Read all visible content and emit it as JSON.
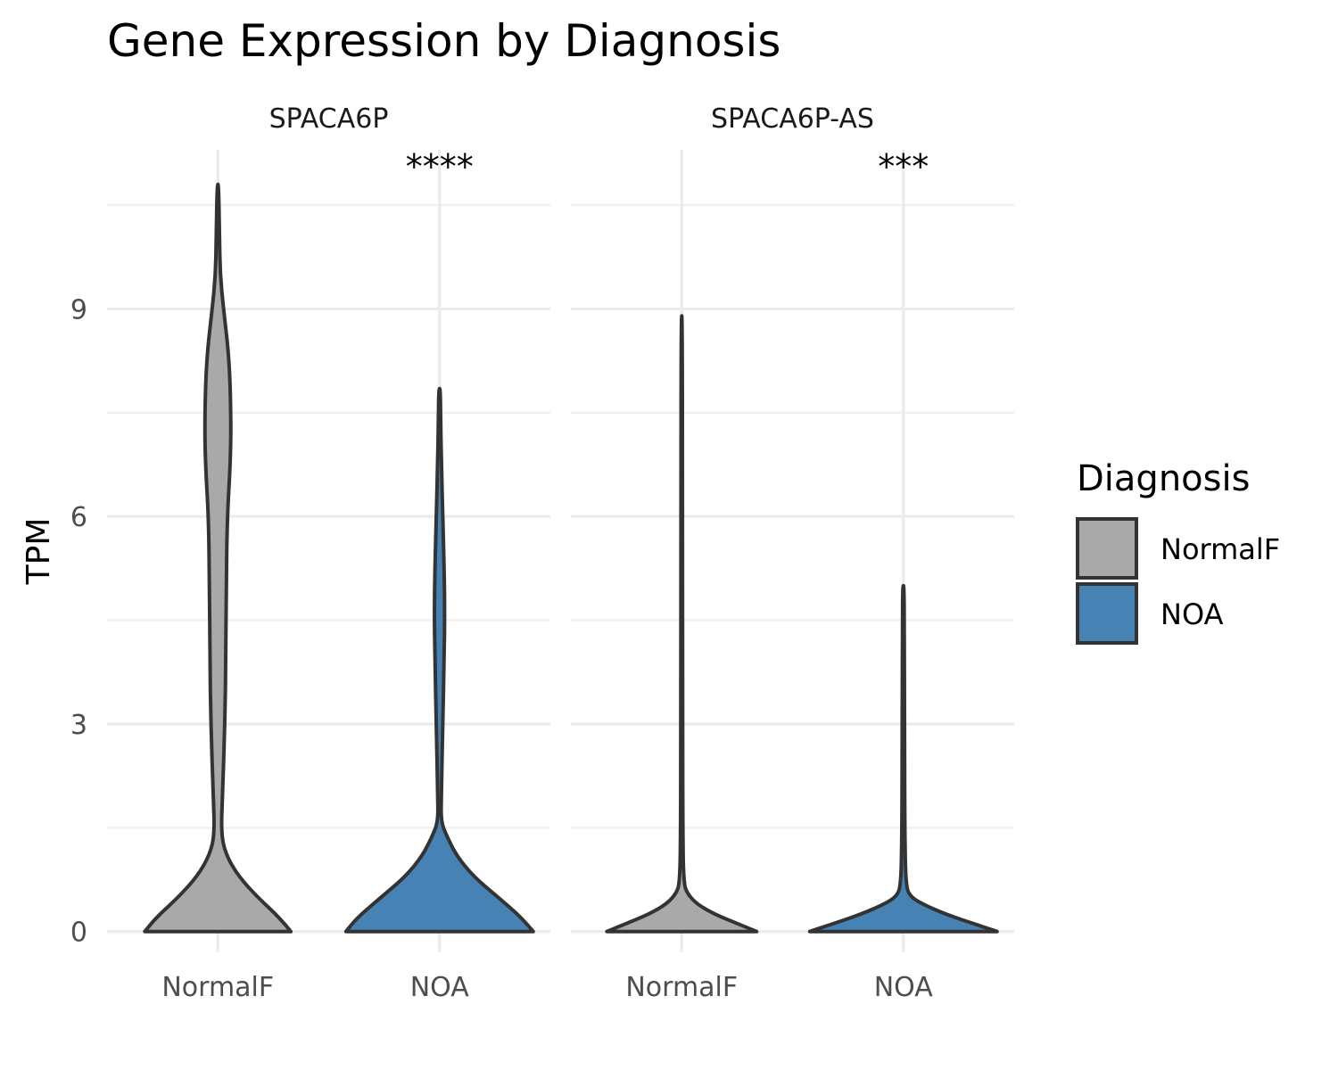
{
  "chart_data": {
    "type": "violin",
    "title": "Gene Expression by Diagnosis",
    "xlabel": "",
    "ylabel": "TPM",
    "ylim": [
      -0.3,
      11.3
    ],
    "yticks": [
      0,
      3,
      6,
      9
    ],
    "grid": true,
    "categories": [
      "NormalF",
      "NOA"
    ],
    "colors": {
      "NormalF": "#a9a9a9",
      "NOA": "#4682b4"
    },
    "legend": {
      "title": "Diagnosis",
      "position": "right",
      "items": [
        {
          "label": "NormalF",
          "color": "#a9a9a9"
        },
        {
          "label": "NOA",
          "color": "#4682b4"
        }
      ]
    },
    "panels": [
      {
        "name": "SPACA6P",
        "significance": "****",
        "violins": [
          {
            "category": "NormalF",
            "density": [
              [
                0,
                0.78
              ],
              [
                0.2,
                0.66
              ],
              [
                0.5,
                0.42
              ],
              [
                0.8,
                0.22
              ],
              [
                1.1,
                0.09
              ],
              [
                1.4,
                0.035
              ],
              [
                2.0,
                0.05
              ],
              [
                3.0,
                0.075
              ],
              [
                4.0,
                0.085
              ],
              [
                5.0,
                0.09
              ],
              [
                6.0,
                0.1
              ],
              [
                6.8,
                0.135
              ],
              [
                7.5,
                0.14
              ],
              [
                8.3,
                0.12
              ],
              [
                9.0,
                0.06
              ],
              [
                9.5,
                0.025
              ],
              [
                10.0,
                0.018
              ],
              [
                10.8,
                0.008
              ]
            ]
          },
          {
            "category": "NOA",
            "density": [
              [
                0,
                1.0
              ],
              [
                0.2,
                0.88
              ],
              [
                0.5,
                0.62
              ],
              [
                0.8,
                0.36
              ],
              [
                1.1,
                0.18
              ],
              [
                1.4,
                0.07
              ],
              [
                1.6,
                0.015
              ],
              [
                2.0,
                0.02
              ],
              [
                3.0,
                0.035
              ],
              [
                4.0,
                0.05
              ],
              [
                4.6,
                0.055
              ],
              [
                5.2,
                0.05
              ],
              [
                6.0,
                0.035
              ],
              [
                6.8,
                0.02
              ],
              [
                7.4,
                0.012
              ],
              [
                7.85,
                0.008
              ]
            ]
          }
        ]
      },
      {
        "name": "SPACA6P-AS",
        "significance": "***",
        "violins": [
          {
            "category": "NormalF",
            "density": [
              [
                0,
                0.8
              ],
              [
                0.1,
                0.62
              ],
              [
                0.25,
                0.35
              ],
              [
                0.4,
                0.16
              ],
              [
                0.55,
                0.06
              ],
              [
                0.7,
                0.02
              ],
              [
                1.5,
                0.012
              ],
              [
                3.0,
                0.01
              ],
              [
                6.0,
                0.009
              ],
              [
                8.9,
                0.006
              ]
            ]
          },
          {
            "category": "NOA",
            "density": [
              [
                0,
                1.0
              ],
              [
                0.1,
                0.78
              ],
              [
                0.25,
                0.45
              ],
              [
                0.4,
                0.2
              ],
              [
                0.5,
                0.08
              ],
              [
                0.65,
                0.025
              ],
              [
                1.5,
                0.015
              ],
              [
                3.0,
                0.012
              ],
              [
                4.5,
                0.01
              ],
              [
                5.0,
                0.006
              ]
            ]
          }
        ]
      }
    ]
  }
}
